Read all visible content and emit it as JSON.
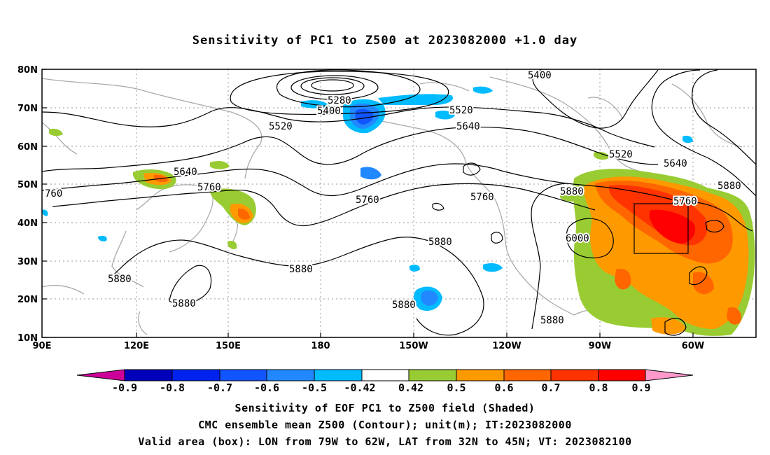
{
  "title": "Sensitivity of PC1 to Z500 at 2023082000 +1.0 day",
  "map": {
    "lat_labels": [
      "80N",
      "70N",
      "60N",
      "50N",
      "40N",
      "30N",
      "20N",
      "10N"
    ],
    "lon_labels": [
      "90E",
      "120E",
      "150E",
      "180",
      "150W",
      "120W",
      "90W",
      "60W"
    ],
    "contour_labels": [
      "5280",
      "5400",
      "5400",
      "5520",
      "5520",
      "5520",
      "5640",
      "5640",
      "5640",
      "5760",
      "5760",
      "5760",
      "760",
      "5760",
      "5880",
      "5880",
      "5880",
      "5880",
      "5880",
      "5880",
      "5880",
      "5880",
      "6000"
    ],
    "valid_box": {
      "lon_range": [
        "79W",
        "62W"
      ],
      "lat_range": [
        "32N",
        "45N"
      ]
    },
    "colors": {
      "contour": "#000000",
      "coast": "#aaaaaa",
      "grid": "#999999"
    }
  },
  "colorbar": {
    "tick_labels": [
      "-0.9",
      "-0.8",
      "-0.7",
      "-0.6",
      "-0.5",
      "-0.42",
      "0.42",
      "0.5",
      "0.6",
      "0.7",
      "0.8",
      "0.9"
    ],
    "colors": [
      "#cc0099",
      "#0000bb",
      "#0022ee",
      "#1155ff",
      "#2288ff",
      "#00bbff",
      "#ffffff",
      "#99cc33",
      "#ff9900",
      "#ff6600",
      "#ff3300",
      "#ff0000",
      "#ff99cc"
    ]
  },
  "captions": [
    "Sensitivity of EOF PC1 to Z500 field (Shaded)",
    "CMC ensemble mean Z500 (Contour); unit(m); IT:2023082000",
    "Valid area (box): LON from 79W to 62W, LAT from 32N to 45N; VT: 2023082100"
  ]
}
